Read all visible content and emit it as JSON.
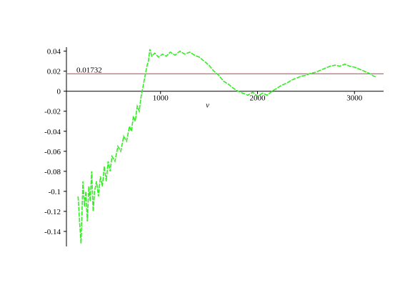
{
  "chart_data": {
    "type": "line",
    "x_label": "ν",
    "xlim": [
      15,
      3300
    ],
    "ylim": [
      -0.155,
      0.044
    ],
    "xticks": [
      1000,
      2000,
      3000
    ],
    "yticks": [
      0.04,
      0.02,
      0,
      -0.02,
      -0.04,
      -0.06,
      -0.08,
      -0.1,
      -0.12,
      -0.14
    ],
    "reference_line": {
      "value": 0.01732,
      "color": "#e06060"
    },
    "series": [
      {
        "color": "#33ee22",
        "x": [
          150,
          165,
          180,
          190,
          200,
          215,
          230,
          245,
          260,
          275,
          290,
          305,
          320,
          340,
          360,
          380,
          400,
          420,
          440,
          460,
          480,
          500,
          530,
          560,
          590,
          620,
          650,
          680,
          700,
          720,
          740,
          760,
          780,
          800,
          820,
          840,
          860,
          875,
          890,
          910,
          940,
          980,
          1020,
          1060,
          1100,
          1150,
          1200,
          1250,
          1300,
          1350,
          1400,
          1450,
          1500,
          1550,
          1600,
          1650,
          1700,
          1750,
          1800,
          1850,
          1900,
          1950,
          2000,
          2050,
          2100,
          2150,
          2200,
          2250,
          2300,
          2350,
          2400,
          2450,
          2500,
          2550,
          2600,
          2650,
          2700,
          2750,
          2800,
          2850,
          2900,
          2950,
          3000,
          3050,
          3100,
          3150,
          3200,
          3230
        ],
        "values": [
          -0.105,
          -0.13,
          -0.152,
          -0.12,
          -0.09,
          -0.115,
          -0.1,
          -0.13,
          -0.095,
          -0.11,
          -0.08,
          -0.12,
          -0.1,
          -0.09,
          -0.105,
          -0.085,
          -0.095,
          -0.075,
          -0.09,
          -0.07,
          -0.08,
          -0.065,
          -0.07,
          -0.055,
          -0.06,
          -0.045,
          -0.05,
          -0.035,
          -0.04,
          -0.025,
          -0.03,
          -0.015,
          -0.02,
          -0.005,
          0.005,
          0.015,
          0.025,
          0.03,
          0.042,
          0.035,
          0.038,
          0.034,
          0.037,
          0.035,
          0.039,
          0.036,
          0.04,
          0.037,
          0.039,
          0.036,
          0.034,
          0.03,
          0.026,
          0.02,
          0.016,
          0.01,
          0.007,
          0.003,
          0.0,
          -0.002,
          -0.004,
          -0.001,
          -0.005,
          -0.002,
          -0.004,
          0.0,
          0.003,
          0.006,
          0.008,
          0.011,
          0.013,
          0.015,
          0.016,
          0.018,
          0.019,
          0.021,
          0.023,
          0.025,
          0.026,
          0.025,
          0.027,
          0.025,
          0.024,
          0.022,
          0.02,
          0.018,
          0.015,
          0.014
        ]
      }
    ]
  }
}
